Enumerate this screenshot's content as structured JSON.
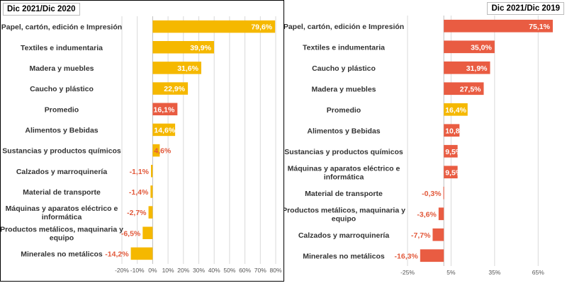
{
  "colors": {
    "yellow": "#f5b800",
    "red": "#e95c42",
    "grid": "#d9d9d9",
    "axis": "#bfbfbf"
  },
  "chart_data": [
    {
      "type": "bar",
      "orientation": "horizontal",
      "title": "Dic 2021/Dic 2020",
      "categories": [
        "Papel, cartón, edición e Impresión",
        "Textiles e indumentaria",
        "Madera y muebles",
        "Caucho y plástico",
        "Promedio",
        "Alimentos y Bebidas",
        "Sustancias y productos químicos",
        "Calzados y marroquinería",
        "Material de transporte",
        "Máquinas y aparatos eléctrico e informática",
        "Productos metálicos, maquinaria y equipo",
        "Minerales no metálicos"
      ],
      "values": [
        79.6,
        39.9,
        31.6,
        22.9,
        16.1,
        14.6,
        4.6,
        -1.1,
        -1.4,
        -2.7,
        -6.5,
        -14.2
      ],
      "value_labels": [
        "79,6%",
        "39,9%",
        "31,6%",
        "22,9%",
        "16,1%",
        "14,6%",
        "4,6%",
        "-1,1%",
        "-1,4%",
        "-2,7%",
        "-6,5%",
        "-14,2%"
      ],
      "bar_colors": [
        "yellow",
        "yellow",
        "yellow",
        "yellow",
        "red",
        "yellow",
        "yellow",
        "yellow",
        "yellow",
        "yellow",
        "yellow",
        "yellow"
      ],
      "xlim": [
        -20,
        80
      ],
      "xticks": [
        -20,
        -10,
        0,
        10,
        20,
        30,
        40,
        50,
        60,
        70,
        80
      ],
      "xtick_labels": [
        "-20%",
        "-10%",
        "0%",
        "10%",
        "20%",
        "30%",
        "40%",
        "50%",
        "60%",
        "70%",
        "80%"
      ],
      "grid": true,
      "legend": "none"
    },
    {
      "type": "bar",
      "orientation": "horizontal",
      "title": "Dic 2021/Dic 2019",
      "categories": [
        "Papel, cartón, edición e Impresión",
        "Textiles e indumentaria",
        "Caucho y plástico",
        "Madera y muebles",
        "Promedio",
        "Alimentos y Bebidas",
        "Sustancias y productos químicos",
        "Máquinas y aparatos eléctrico e informática",
        "Material de transporte",
        "Productos metálicos, maquinaria y equipo",
        "Calzados y marroquinería",
        "Minerales no metálicos"
      ],
      "values": [
        75.1,
        35.0,
        31.9,
        27.5,
        16.4,
        10.8,
        9.5,
        9.5,
        -0.3,
        -3.6,
        -7.7,
        -16.3
      ],
      "value_labels": [
        "75,1%",
        "35,0%",
        "31,9%",
        "27,5%",
        "16,4%",
        "10,8%",
        "9,5%",
        "9,5%",
        "-0,3%",
        "-3,6%",
        "-7,7%",
        "-16,3%"
      ],
      "bar_colors": [
        "red",
        "red",
        "red",
        "red",
        "yellow",
        "red",
        "red",
        "red",
        "red",
        "red",
        "red",
        "red"
      ],
      "xlim": [
        -25,
        80
      ],
      "xticks": [
        -25,
        5,
        35,
        65
      ],
      "xtick_labels": [
        "-25%",
        "5%",
        "35%",
        "65%"
      ],
      "grid": true,
      "legend": "none"
    }
  ]
}
